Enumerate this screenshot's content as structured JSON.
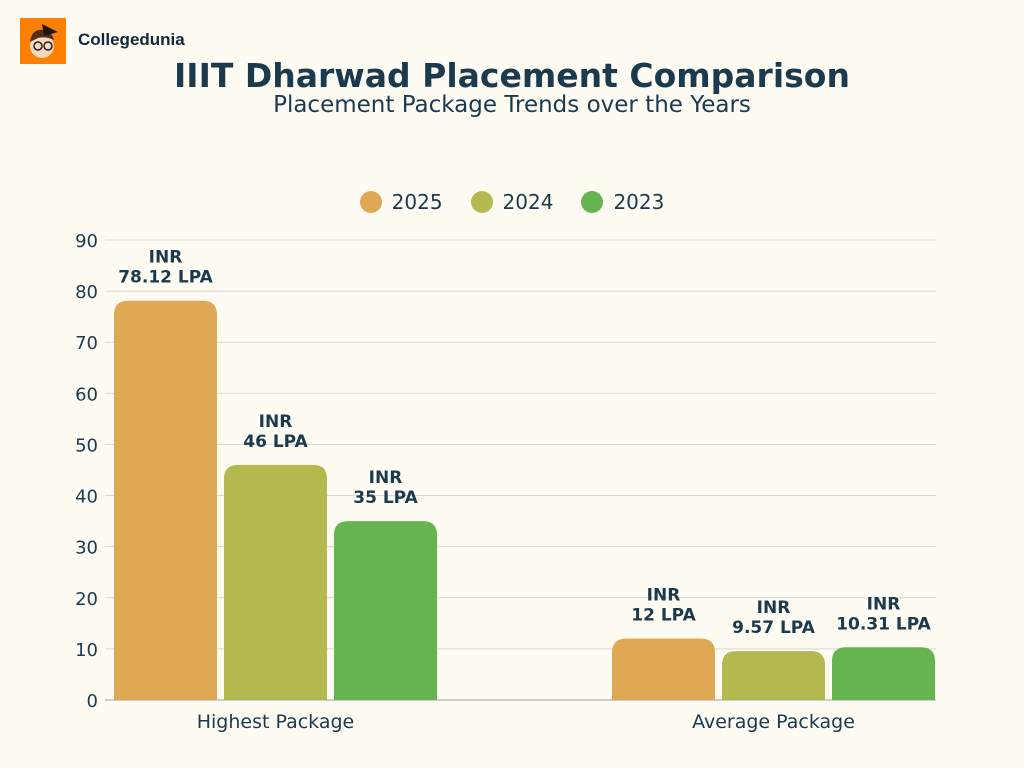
{
  "brand": {
    "name": "Collegedunia",
    "logo_color": "#ff7f00"
  },
  "chart_data": {
    "type": "bar",
    "title": "IIIT Dharwad Placement Comparison",
    "subtitle": "Placement Package Trends over the Years",
    "categories": [
      "Highest Package",
      "Average Package"
    ],
    "series": [
      {
        "name": "2025",
        "color": "#dfa854",
        "values": [
          78.12,
          12
        ],
        "labels": [
          [
            "INR",
            "78.12 LPA"
          ],
          [
            "INR",
            "12 LPA"
          ]
        ]
      },
      {
        "name": "2024",
        "color": "#b3b94f",
        "values": [
          46,
          9.57
        ],
        "labels": [
          [
            "INR",
            "46 LPA"
          ],
          [
            "INR",
            "9.57 LPA"
          ]
        ]
      },
      {
        "name": "2023",
        "color": "#65b44f",
        "values": [
          35,
          10.31
        ],
        "labels": [
          [
            "INR",
            "35 LPA"
          ],
          [
            "INR",
            "10.31 LPA"
          ]
        ]
      }
    ],
    "ylim": [
      0,
      90
    ],
    "yticks": [
      0,
      10,
      20,
      30,
      40,
      50,
      60,
      70,
      80,
      90
    ],
    "grid": true,
    "legend": "top-center",
    "xlabel": "",
    "ylabel": ""
  }
}
